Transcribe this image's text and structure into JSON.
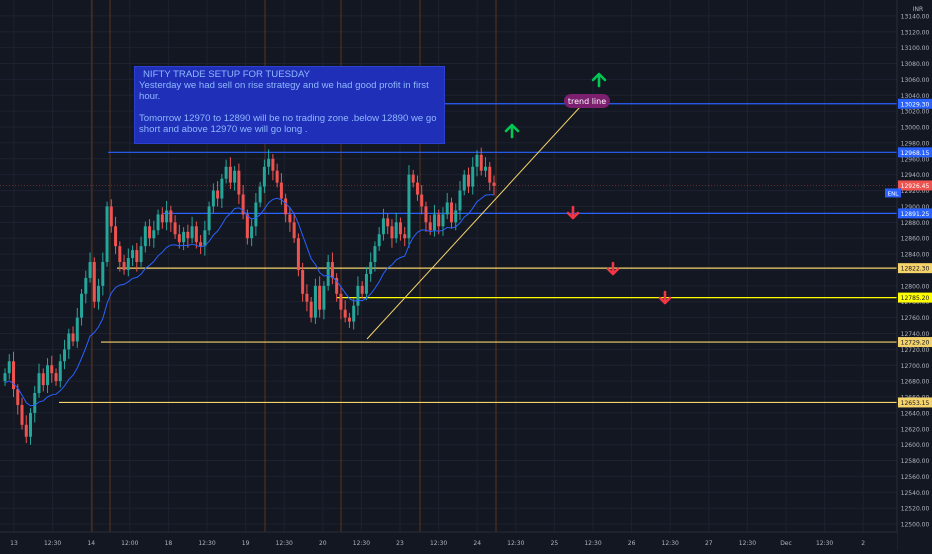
{
  "currency": "INR",
  "colors": {
    "background": "#131722",
    "grid": "#1e2230",
    "bull": "#26a69a",
    "bear": "#ef5350",
    "ma": "#2962ff",
    "blue_level": "#2962ff",
    "yellow_level": "#f5d36b",
    "bright_yellow": "#ffff00",
    "up_arrow": "#00c853",
    "down_arrow": "#f23645",
    "trend_label_bg": "#7b1f6e",
    "session_line": "#7a3f1f"
  },
  "note": {
    "line1": "NIFTY TRADE SETUP FOR TUESDAY",
    "line2": "Yesterday we had sell on  rise strategy and we had good profit in first hour.",
    "line3": "Tomorrow 12970 to 12890 will be no trading zone .below 12890 we go short and above 12970 we will go long ."
  },
  "trend_label": "trend line",
  "chart_data": {
    "type": "candlestick",
    "symbol": "NIFTY",
    "ylim": [
      12490,
      13160
    ],
    "y_ticks": [
      13140,
      13120,
      13100,
      13080,
      13060,
      13040,
      13020,
      13000,
      12980,
      12960,
      12940,
      12920,
      12900,
      12880,
      12860,
      12840,
      12820,
      12800,
      12780,
      12760,
      12740,
      12720,
      12700,
      12680,
      12660,
      12640,
      12620,
      12600,
      12580,
      12560,
      12540,
      12520,
      12500
    ],
    "x_ticks": [
      "13",
      "12:30",
      "14",
      "12:00",
      "18",
      "12:30",
      "19",
      "12:30",
      "20",
      "12:30",
      "23",
      "12:30",
      "24",
      "12:30",
      "25",
      "12:30",
      "26",
      "12:30",
      "27",
      "12:30",
      "Dec",
      "12:30",
      "2"
    ],
    "levels": [
      {
        "value": 13029.3,
        "label": "13029.30",
        "color": "blue"
      },
      {
        "value": 12968.15,
        "label": "12968.15",
        "color": "blue"
      },
      {
        "value": 12891.25,
        "label": "12891.25",
        "color": "blue"
      },
      {
        "value": 12822.3,
        "label": "12822.30",
        "color": "yellow"
      },
      {
        "value": 12785.2,
        "label": "12785.20",
        "color": "bright_yellow"
      },
      {
        "value": 12729.2,
        "label": "12729.20",
        "color": "yellow"
      },
      {
        "value": 12653.15,
        "label": "12653.15",
        "color": "yellow"
      }
    ],
    "last_price": {
      "value": 12926.45,
      "label": "12926.45",
      "badge": "ENL"
    },
    "closes": [
      12690,
      12705,
      12670,
      12650,
      12625,
      12610,
      12640,
      12665,
      12690,
      12675,
      12700,
      12690,
      12680,
      12705,
      12720,
      12740,
      12730,
      12760,
      12790,
      12810,
      12830,
      12780,
      12800,
      12830,
      12900,
      12875,
      12850,
      12830,
      12820,
      12835,
      12845,
      12830,
      12850,
      12875,
      12860,
      12870,
      12890,
      12880,
      12895,
      12880,
      12865,
      12855,
      12868,
      12860,
      12875,
      12855,
      12850,
      12870,
      12900,
      12920,
      12910,
      12935,
      12950,
      12930,
      12945,
      12915,
      12890,
      12860,
      12875,
      12905,
      12925,
      12950,
      12960,
      12945,
      12930,
      12910,
      12890,
      12880,
      12860,
      12820,
      12790,
      12780,
      12760,
      12800,
      12770,
      12800,
      12830,
      12810,
      12790,
      12770,
      12760,
      12755,
      12775,
      12800,
      12790,
      12815,
      12830,
      12850,
      12865,
      12885,
      12875,
      12860,
      12880,
      12865,
      12860,
      12940,
      12930,
      12915,
      12900,
      12880,
      12870,
      12890,
      12875,
      12890,
      12905,
      12880,
      12895,
      12920,
      12940,
      12925,
      12950,
      12965,
      12945,
      12950,
      12930,
      12926
    ]
  }
}
